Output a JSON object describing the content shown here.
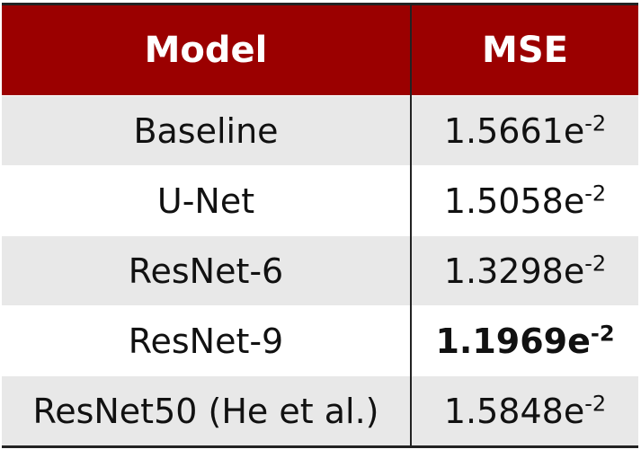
{
  "table": {
    "headers": {
      "model": "Model",
      "mse": "MSE"
    },
    "rows": [
      {
        "model": "Baseline",
        "mse_mantissa": "1.5661e",
        "mse_exponent": "-2",
        "best": false
      },
      {
        "model": "U-Net",
        "mse_mantissa": "1.5058e",
        "mse_exponent": "-2",
        "best": false
      },
      {
        "model": "ResNet-6",
        "mse_mantissa": "1.3298e",
        "mse_exponent": "-2",
        "best": false
      },
      {
        "model": "ResNet-9",
        "mse_mantissa": "1.1969e",
        "mse_exponent": "-2",
        "best": true
      },
      {
        "model": "ResNet50 (He et al.)",
        "mse_mantissa": "1.5848e",
        "mse_exponent": "-2",
        "best": false
      }
    ]
  },
  "colors": {
    "header_background": "#9b0000",
    "header_text": "#ffffff",
    "stripe_row": "#e8e8e8",
    "plain_row": "#ffffff"
  }
}
